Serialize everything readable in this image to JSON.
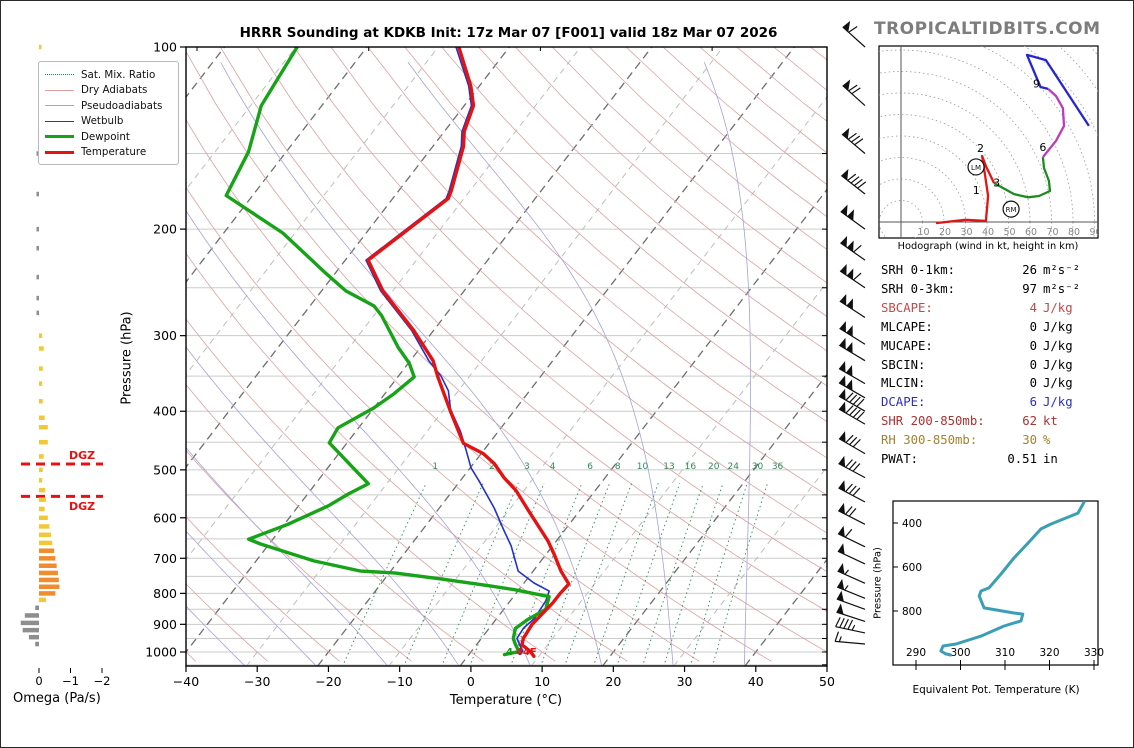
{
  "header": {
    "title": "HRRR Sounding at KDKB Init: 17z Mar 07 [F001] valid 18z Mar 07 2026",
    "brand": "TROPICALTIDBITS.COM"
  },
  "legend": {
    "items": [
      {
        "label": "Sat. Mix. Ratio",
        "color": "#2e8b57",
        "width": 1,
        "dash": "dotted"
      },
      {
        "label": "Dry Adiabats",
        "color": "#dfa0a0",
        "width": 1,
        "dash": "solid"
      },
      {
        "label": "Pseudoadiabats",
        "color": "#a3a3da",
        "width": 1,
        "dash": "solid"
      },
      {
        "label": "Wetbulb",
        "color": "#2233cc",
        "width": 1.5,
        "dash": "solid"
      },
      {
        "label": "Dewpoint",
        "color": "#17a317",
        "width": 3,
        "dash": "solid"
      },
      {
        "label": "Temperature",
        "color": "#e51212",
        "width": 3,
        "dash": "solid"
      }
    ]
  },
  "stats": {
    "rows": [
      {
        "label": "SRH 0-1km:",
        "value": "26",
        "unit": "m²s⁻²",
        "color": "#000000"
      },
      {
        "label": "SRH 0-3km:",
        "value": "97",
        "unit": "m²s⁻²",
        "color": "#000000"
      },
      {
        "label": "SBCAPE:",
        "value": "4",
        "unit": "J/kg",
        "color": "#cc4444"
      },
      {
        "label": "MLCAPE:",
        "value": "0",
        "unit": "J/kg",
        "color": "#000000"
      },
      {
        "label": "MUCAPE:",
        "value": "0",
        "unit": "J/kg",
        "color": "#000000"
      },
      {
        "label": "SBCIN:",
        "value": "0",
        "unit": "J/kg",
        "color": "#000000"
      },
      {
        "label": "MLCIN:",
        "value": "0",
        "unit": "J/kg",
        "color": "#000000"
      },
      {
        "label": "DCAPE:",
        "value": "6",
        "unit": "J/kg",
        "color": "#2d2dcc"
      },
      {
        "label": "SHR 200-850mb:",
        "value": "62",
        "unit": "kt",
        "color": "#aa3333"
      },
      {
        "label": "RH 300-850mb:",
        "value": "30",
        "unit": "%",
        "color": "#a5822b"
      },
      {
        "label": "PWAT:",
        "value": "0.51",
        "unit": "in",
        "color": "#000000"
      }
    ]
  },
  "labels": {
    "main_xlabel": "Temperature (°C)",
    "main_ylabel": "Pressure (hPa)",
    "omega_xlabel": "Omega (Pa/s)",
    "hodo_caption": "Hodograph (wind in kt, height in km)",
    "thetae_xlabel": "Equivalent Pot. Temperature (K)",
    "thetae_ylabel": "Pressure (hPa)",
    "surface_dewpoint_f": "4",
    "surface_temperature_f": "44F",
    "dgz_label": "DGZ"
  },
  "chart_data": [
    {
      "type": "skewt",
      "title": "HRRR Sounding at KDKB",
      "xlabel": "Temperature (°C)",
      "ylabel": "Pressure (hPa)",
      "xlim": [
        -40,
        50
      ],
      "pressure_ticks": [
        100,
        200,
        300,
        400,
        500,
        600,
        700,
        800,
        900,
        1000
      ],
      "temp_ticks": [
        -40,
        -30,
        -20,
        -10,
        0,
        10,
        20,
        30,
        40,
        50
      ],
      "isotherm_step": 10,
      "dry_adiabat_theta_range": [
        -40,
        220,
        10
      ],
      "pseudoadiabat_t0_range": [
        -120,
        40,
        10
      ],
      "mixing_ratio_lines": [
        1,
        2,
        3,
        4,
        6,
        8,
        10,
        13,
        16,
        20,
        24,
        30,
        36
      ],
      "dgz_pressures": [
        489,
        553
      ],
      "temperature_profile": [
        [
          100,
          -67.1
        ],
        [
          116,
          -61.2
        ],
        [
          125,
          -58.7
        ],
        [
          138,
          -57.2
        ],
        [
          146,
          -55.7
        ],
        [
          173,
          -52.6
        ],
        [
          178,
          -52.2
        ],
        [
          225,
          -56.8
        ],
        [
          253,
          -51.4
        ],
        [
          294,
          -42.8
        ],
        [
          330,
          -36.8
        ],
        [
          350,
          -34.5
        ],
        [
          400,
          -28.9
        ],
        [
          452,
          -23.6
        ],
        [
          470,
          -19.7
        ],
        [
          488,
          -17.1
        ],
        [
          515,
          -14.2
        ],
        [
          541,
          -11.1
        ],
        [
          585,
          -7.1
        ],
        [
          655,
          -1.2
        ],
        [
          689,
          1.1
        ],
        [
          735,
          3.9
        ],
        [
          772,
          6.4
        ],
        [
          802,
          6.2
        ],
        [
          830,
          6.2
        ],
        [
          900,
          5.6
        ],
        [
          950,
          5.9
        ],
        [
          973,
          6.4
        ],
        [
          998,
          8.3
        ],
        [
          1016,
          9.3
        ]
      ],
      "dewpoint_profile": [
        [
          100,
          -89.8
        ],
        [
          125,
          -88.5
        ],
        [
          149,
          -85.3
        ],
        [
          176,
          -83.7
        ],
        [
          203,
          -71.7
        ],
        [
          237,
          -61.2
        ],
        [
          253,
          -56.6
        ],
        [
          268,
          -51.0
        ],
        [
          278,
          -48.9
        ],
        [
          314,
          -43.1
        ],
        [
          333,
          -39.9
        ],
        [
          351,
          -37.7
        ],
        [
          374,
          -38.7
        ],
        [
          395,
          -40.0
        ],
        [
          426,
          -42.9
        ],
        [
          451,
          -42.5
        ],
        [
          502,
          -35.7
        ],
        [
          527,
          -32.6
        ],
        [
          548,
          -34.3
        ],
        [
          573,
          -35.8
        ],
        [
          615,
          -39.5
        ],
        [
          651,
          -43.4
        ],
        [
          663,
          -41.2
        ],
        [
          707,
          -31.9
        ],
        [
          735,
          -24.2
        ],
        [
          740,
          -19.3
        ],
        [
          757,
          -12.1
        ],
        [
          777,
          -4.7
        ],
        [
          789,
          -0.6
        ],
        [
          801,
          2.6
        ],
        [
          810,
          5.0
        ],
        [
          850,
          5.9
        ],
        [
          883,
          4.5
        ],
        [
          914,
          3.7
        ],
        [
          950,
          4.5
        ],
        [
          973,
          5.5
        ],
        [
          998,
          6.7
        ],
        [
          1010,
          5.0
        ]
      ],
      "wetbulb_profile": [
        [
          100,
          -67.5
        ],
        [
          116,
          -61.5
        ],
        [
          125,
          -59.0
        ],
        [
          138,
          -57.5
        ],
        [
          146,
          -56.0
        ],
        [
          173,
          -52.9
        ],
        [
          178,
          -52.5
        ],
        [
          225,
          -57.1
        ],
        [
          253,
          -51.7
        ],
        [
          294,
          -43.1
        ],
        [
          330,
          -37.4
        ],
        [
          350,
          -34.0
        ],
        [
          370,
          -31.4
        ],
        [
          397,
          -29.1
        ],
        [
          432,
          -25.3
        ],
        [
          465,
          -22.4
        ],
        [
          496,
          -19.9
        ],
        [
          521,
          -17.4
        ],
        [
          578,
          -12.3
        ],
        [
          631,
          -8.4
        ],
        [
          668,
          -5.8
        ],
        [
          735,
          -2.1
        ],
        [
          769,
          1.4
        ],
        [
          793,
          4.4
        ],
        [
          824,
          5.0
        ],
        [
          880,
          5.3
        ],
        [
          914,
          4.8
        ],
        [
          950,
          5.0
        ],
        [
          998,
          7.2
        ],
        [
          1010,
          7.0
        ]
      ],
      "wind_barbs": [
        {
          "p": 100,
          "pennants": 1,
          "fulls": 1,
          "halves": 0,
          "angle": 42
        },
        {
          "p": 125,
          "pennants": 1,
          "fulls": 2,
          "halves": 0,
          "angle": 42
        },
        {
          "p": 150,
          "pennants": 1,
          "fulls": 3,
          "halves": 0,
          "angle": 40
        },
        {
          "p": 175,
          "pennants": 1,
          "fulls": 4,
          "halves": 0,
          "angle": 38
        },
        {
          "p": 200,
          "pennants": 2,
          "fulls": 0,
          "halves": 0,
          "angle": 36
        },
        {
          "p": 225,
          "pennants": 2,
          "fulls": 1,
          "halves": 0,
          "angle": 35
        },
        {
          "p": 250,
          "pennants": 2,
          "fulls": 1,
          "halves": 0,
          "angle": 34
        },
        {
          "p": 280,
          "pennants": 2,
          "fulls": 0,
          "halves": 0,
          "angle": 33
        },
        {
          "p": 310,
          "pennants": 2,
          "fulls": 0,
          "halves": 0,
          "angle": 32
        },
        {
          "p": 330,
          "pennants": 2,
          "fulls": 0,
          "halves": 0,
          "angle": 31
        },
        {
          "p": 360,
          "pennants": 2,
          "fulls": 0,
          "halves": 0,
          "angle": 30
        },
        {
          "p": 380,
          "pennants": 2,
          "fulls": 0,
          "halves": 0,
          "angle": 30
        },
        {
          "p": 400,
          "pennants": 1,
          "fulls": 4,
          "halves": 0,
          "angle": 30
        },
        {
          "p": 420,
          "pennants": 1,
          "fulls": 4,
          "halves": 0,
          "angle": 30
        },
        {
          "p": 470,
          "pennants": 1,
          "fulls": 3,
          "halves": 0,
          "angle": 30
        },
        {
          "p": 515,
          "pennants": 1,
          "fulls": 3,
          "halves": 0,
          "angle": 28
        },
        {
          "p": 565,
          "pennants": 1,
          "fulls": 3,
          "halves": 0,
          "angle": 28
        },
        {
          "p": 615,
          "pennants": 1,
          "fulls": 2,
          "halves": 0,
          "angle": 27
        },
        {
          "p": 670,
          "pennants": 1,
          "fulls": 1,
          "halves": 0,
          "angle": 26
        },
        {
          "p": 715,
          "pennants": 1,
          "fulls": 0,
          "halves": 0,
          "angle": 25
        },
        {
          "p": 770,
          "pennants": 1,
          "fulls": 0,
          "halves": 1,
          "angle": 24
        },
        {
          "p": 815,
          "pennants": 1,
          "fulls": 0,
          "halves": 1,
          "angle": 22
        },
        {
          "p": 850,
          "pennants": 1,
          "fulls": 0,
          "halves": 0,
          "angle": 20
        },
        {
          "p": 890,
          "pennants": 1,
          "fulls": 0,
          "halves": 0,
          "angle": 18
        },
        {
          "p": 930,
          "pennants": 0,
          "fulls": 4,
          "halves": 1,
          "angle": 12
        },
        {
          "p": 970,
          "pennants": 0,
          "fulls": 1,
          "halves": 1,
          "angle": 5
        }
      ]
    },
    {
      "type": "bar",
      "name": "omega-panel",
      "xlabel": "Omega (Pa/s)",
      "x_ticks": [
        0,
        -1,
        -2
      ],
      "bars_p_omega": [
        [
          100,
          -0.06
        ],
        [
          150,
          0.05
        ],
        [
          175,
          0.04
        ],
        [
          200,
          0.06
        ],
        [
          215,
          0.05
        ],
        [
          240,
          0.06
        ],
        [
          260,
          0.05
        ],
        [
          275,
          0.04
        ],
        [
          300,
          -0.1
        ],
        [
          315,
          -0.15
        ],
        [
          340,
          -0.12
        ],
        [
          360,
          -0.1
        ],
        [
          385,
          -0.12
        ],
        [
          410,
          -0.18
        ],
        [
          425,
          -0.28
        ],
        [
          450,
          -0.28
        ],
        [
          475,
          -0.15
        ],
        [
          500,
          -0.12
        ],
        [
          520,
          -0.1
        ],
        [
          540,
          -0.2
        ],
        [
          560,
          -0.22
        ],
        [
          580,
          -0.18
        ],
        [
          600,
          -0.28
        ],
        [
          620,
          -0.33
        ],
        [
          640,
          -0.38
        ],
        [
          660,
          -0.42
        ],
        [
          680,
          -0.48
        ],
        [
          700,
          -0.52
        ],
        [
          720,
          -0.56
        ],
        [
          740,
          -0.6
        ],
        [
          760,
          -0.63
        ],
        [
          780,
          -0.65
        ],
        [
          800,
          -0.52
        ],
        [
          820,
          -0.22
        ],
        [
          845,
          0.12
        ],
        [
          870,
          0.45
        ],
        [
          895,
          0.58
        ],
        [
          920,
          0.52
        ],
        [
          945,
          0.32
        ],
        [
          970,
          0.12
        ]
      ]
    },
    {
      "type": "line",
      "name": "hodograph",
      "caption": "Hodograph (wind in kt, height in km)",
      "ring_interval_kt": 10,
      "ring_labels": [
        10,
        20,
        30,
        40,
        50,
        60,
        70,
        80,
        90
      ],
      "segments": [
        {
          "color": "#e01515",
          "km_range": "0-3",
          "points_uv_kt": [
            [
              16.3,
              -0.5
            ],
            [
              30,
              1
            ],
            [
              39.5,
              0.5
            ],
            [
              40.5,
              12.1
            ],
            [
              38.6,
              25.1
            ],
            [
              37.7,
              30.7
            ],
            [
              39.5,
              26
            ],
            [
              43.3,
              18.1
            ]
          ]
        },
        {
          "color": "#1f8b1f",
          "km_range": "3-6",
          "points_uv_kt": [
            [
              43.3,
              18.1
            ],
            [
              52.6,
              13
            ],
            [
              59,
              11.5
            ],
            [
              64.2,
              12.1
            ],
            [
              69.3,
              14.4
            ],
            [
              68.8,
              19.1
            ],
            [
              66.5,
              25.1
            ],
            [
              66,
              30.2
            ]
          ]
        },
        {
          "color": "#bb3dbb",
          "km_range": "6-9",
          "points_uv_kt": [
            [
              66,
              30.2
            ],
            [
              72.1,
              37.7
            ],
            [
              75.8,
              44.7
            ],
            [
              75.3,
              53
            ],
            [
              72.1,
              58.6
            ],
            [
              68.4,
              61.9
            ]
          ]
        },
        {
          "color": "#2525d8",
          "km_range": "9+",
          "points_uv_kt": [
            [
              68.4,
              61.9
            ],
            [
              64.9,
              62.8
            ],
            [
              58.6,
              77.7
            ],
            [
              67.4,
              75.3
            ],
            [
              87.4,
              44.7
            ]
          ]
        }
      ],
      "height_labels": [
        {
          "text": "1",
          "u": 35.0,
          "v": 13.0
        },
        {
          "text": "2",
          "u": 37.0,
          "v": 32.5
        },
        {
          "text": "3",
          "u": 44.5,
          "v": 16.5
        },
        {
          "text": "6",
          "u": 66.0,
          "v": 33.0
        },
        {
          "text": "9",
          "u": 63.0,
          "v": 62.5
        }
      ],
      "markers": [
        {
          "text": "RM",
          "u": 51.2,
          "v": 6.0
        },
        {
          "text": "LM",
          "u": 34.9,
          "v": 25.6
        }
      ]
    },
    {
      "type": "line",
      "name": "theta-e-panel",
      "xlabel": "Equivalent Pot. Temperature (K)",
      "ylabel": "Pressure (hPa)",
      "x_ticks": [
        290,
        300,
        310,
        320,
        330
      ],
      "y_ticks": [
        400,
        600,
        800
      ],
      "color": "#3a9fb5",
      "profile_p_thetae": [
        [
          304,
          327.8
        ],
        [
          355,
          326.4
        ],
        [
          405,
          320.3
        ],
        [
          427,
          318.1
        ],
        [
          491,
          315.2
        ],
        [
          559,
          312.0
        ],
        [
          632,
          309.1
        ],
        [
          695,
          306.4
        ],
        [
          709,
          304.6
        ],
        [
          732,
          304.2
        ],
        [
          786,
          305.3
        ],
        [
          809,
          312.0
        ],
        [
          814,
          314.0
        ],
        [
          845,
          313.6
        ],
        [
          868,
          309.8
        ],
        [
          914,
          304.6
        ],
        [
          950,
          299.0
        ],
        [
          959,
          296.1
        ],
        [
          982,
          295.6
        ],
        [
          995,
          296.7
        ],
        [
          1000,
          297.8
        ]
      ]
    }
  ]
}
